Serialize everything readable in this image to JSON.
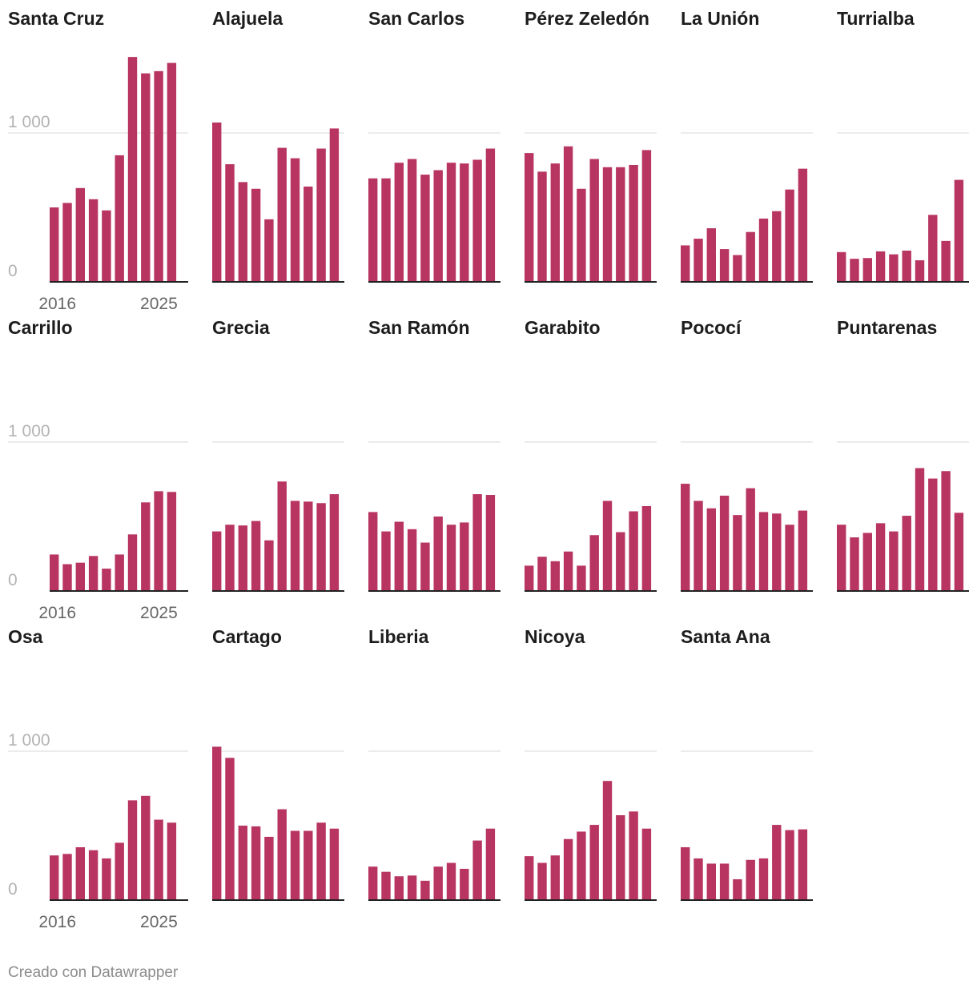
{
  "chart_data": {
    "type": "bar",
    "layout": "small-multiples",
    "years": [
      2016,
      2017,
      2018,
      2019,
      2020,
      2021,
      2022,
      2023,
      2024,
      2025
    ],
    "x_tick_labels": [
      "2016",
      "2025"
    ],
    "y_tick_labels": [
      "0",
      "1 000"
    ],
    "ylim": [
      0,
      1500
    ],
    "bar_color": "#b83461",
    "grid_color": "#e0e0e0",
    "baseline_color": "#222222",
    "panels": [
      {
        "name": "Santa Cruz",
        "values": [
          500,
          530,
          630,
          555,
          480,
          850,
          1510,
          1400,
          1415,
          1470
        ]
      },
      {
        "name": "Alajuela",
        "values": [
          1070,
          790,
          670,
          625,
          420,
          900,
          830,
          640,
          895,
          1030
        ]
      },
      {
        "name": "San Carlos",
        "values": [
          695,
          695,
          800,
          825,
          720,
          750,
          800,
          795,
          820,
          895
        ]
      },
      {
        "name": "Pérez Zeledón",
        "values": [
          865,
          740,
          795,
          910,
          625,
          825,
          770,
          770,
          785,
          885
        ]
      },
      {
        "name": "La Unión",
        "values": [
          245,
          290,
          360,
          220,
          180,
          335,
          425,
          475,
          620,
          760
        ]
      },
      {
        "name": "Turrialba",
        "values": [
          200,
          155,
          160,
          205,
          185,
          210,
          145,
          450,
          275,
          685
        ]
      },
      {
        "name": "Carrillo",
        "values": [
          245,
          180,
          190,
          235,
          150,
          245,
          380,
          595,
          670,
          665
        ]
      },
      {
        "name": "Grecia",
        "values": [
          400,
          445,
          440,
          470,
          340,
          735,
          605,
          600,
          590,
          650
        ]
      },
      {
        "name": "San Ramón",
        "values": [
          530,
          400,
          465,
          415,
          325,
          500,
          445,
          460,
          650,
          645
        ]
      },
      {
        "name": "Garabito",
        "values": [
          170,
          230,
          200,
          265,
          170,
          375,
          605,
          395,
          535,
          570
        ]
      },
      {
        "name": "Pococí",
        "values": [
          720,
          605,
          555,
          640,
          510,
          690,
          530,
          520,
          445,
          540
        ]
      },
      {
        "name": "Puntarenas",
        "values": [
          445,
          360,
          390,
          455,
          400,
          505,
          825,
          755,
          805,
          525
        ]
      },
      {
        "name": "Osa",
        "values": [
          300,
          310,
          355,
          335,
          280,
          385,
          670,
          700,
          540,
          520
        ]
      },
      {
        "name": "Cartago",
        "values": [
          1030,
          955,
          500,
          495,
          425,
          610,
          465,
          465,
          520,
          480
        ]
      },
      {
        "name": "Liberia",
        "values": [
          225,
          190,
          160,
          165,
          130,
          225,
          250,
          210,
          400,
          480
        ]
      },
      {
        "name": "Nicoya",
        "values": [
          295,
          250,
          300,
          410,
          460,
          505,
          800,
          570,
          595,
          480
        ]
      },
      {
        "name": "Santa Ana",
        "values": [
          355,
          280,
          245,
          245,
          140,
          270,
          280,
          505,
          470,
          475
        ]
      }
    ]
  },
  "footer": {
    "credit": "Creado con Datawrapper"
  }
}
